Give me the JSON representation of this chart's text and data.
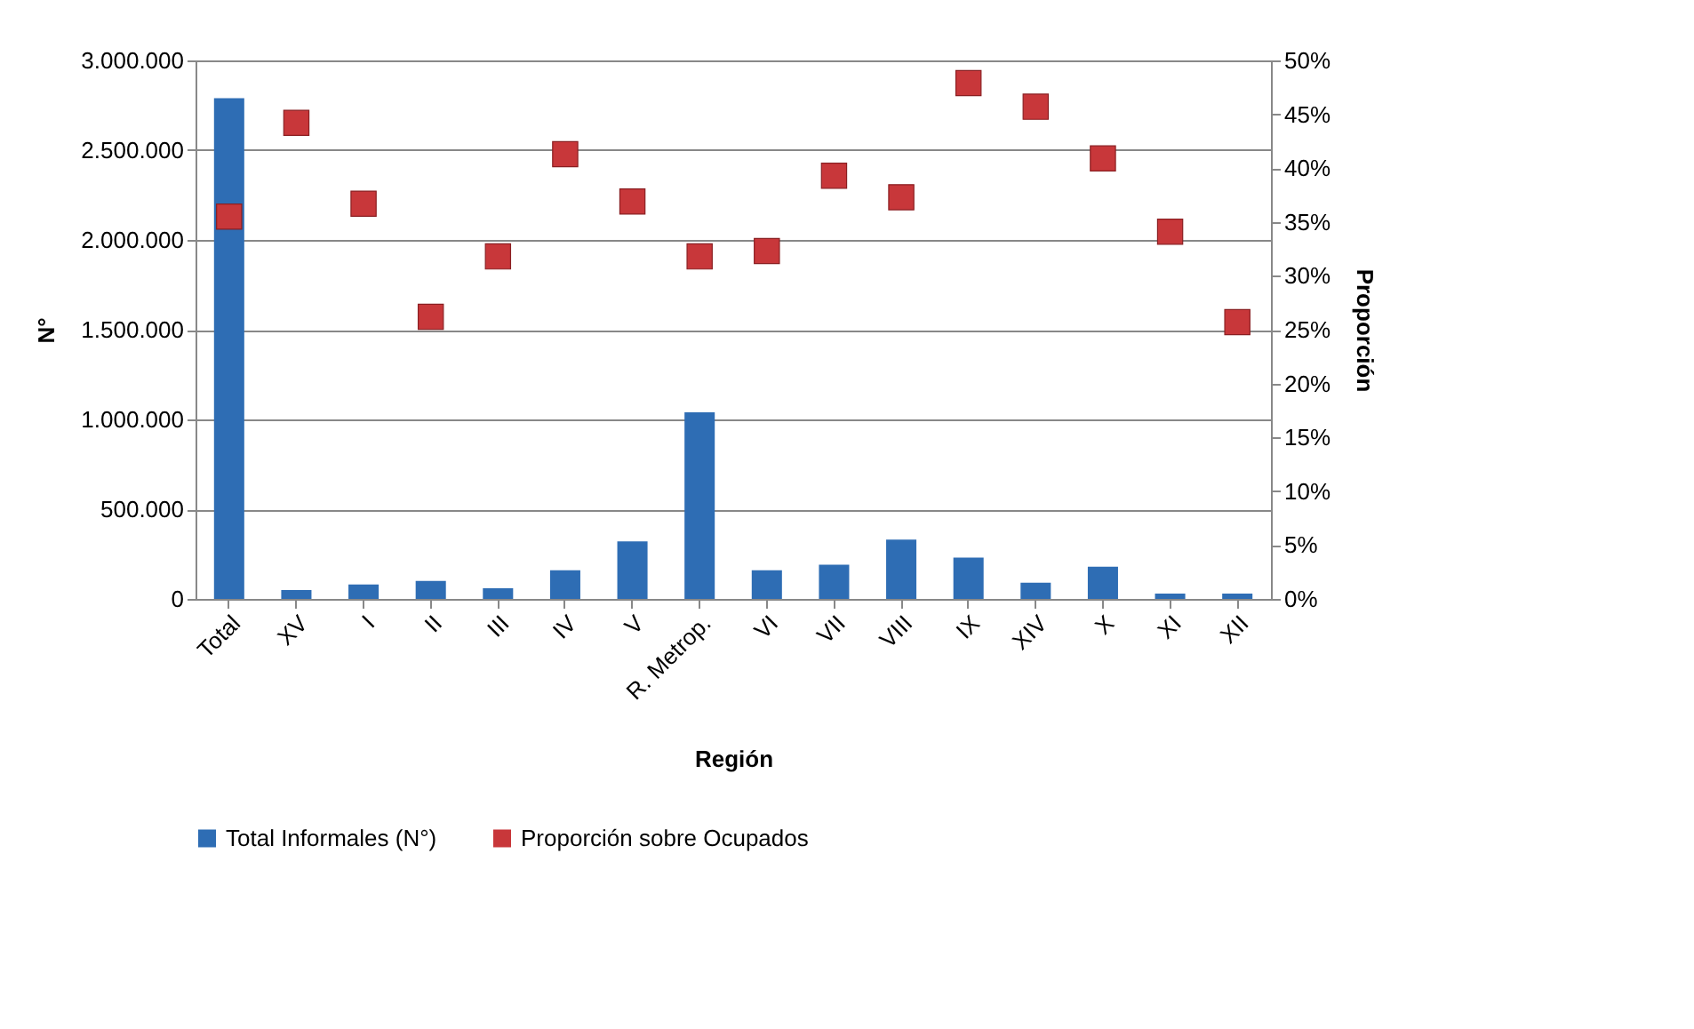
{
  "chart_data": {
    "type": "bar",
    "xlabel": "Región",
    "ylabel": "N°",
    "y2label": "Proporción",
    "categories": [
      "Total",
      "XV",
      "I",
      "II",
      "III",
      "IV",
      "V",
      "R. Metrop.",
      "VI",
      "VII",
      "VIII",
      "IX",
      "XIV",
      "X",
      "XI",
      "XII"
    ],
    "series": [
      {
        "name": "Total Informales (N°)",
        "color": "#2e6db4",
        "values": [
          2790000,
          50000,
          80000,
          100000,
          60000,
          160000,
          320000,
          1040000,
          160000,
          190000,
          330000,
          230000,
          90000,
          180000,
          30000,
          30000
        ]
      },
      {
        "name": "Proporción sobre Ocupados",
        "type": "scatter",
        "axis": "y2",
        "color": "#c8373a",
        "values": [
          35.5,
          44.2,
          36.7,
          26.2,
          31.8,
          41.3,
          36.9,
          31.8,
          32.3,
          39.3,
          37.3,
          47.9,
          45.7,
          40.9,
          34.1,
          25.7
        ]
      }
    ],
    "ylim": [
      0,
      3000000
    ],
    "yticks": [
      {
        "value": 0,
        "label": "0"
      },
      {
        "value": 500000,
        "label": "500.000"
      },
      {
        "value": 1000000,
        "label": "1.000.000"
      },
      {
        "value": 1500000,
        "label": "1.500.000"
      },
      {
        "value": 2000000,
        "label": "2.000.000"
      },
      {
        "value": 2500000,
        "label": "2.500.000"
      },
      {
        "value": 3000000,
        "label": "3.000.000"
      }
    ],
    "y2lim": [
      0,
      50
    ],
    "y2ticks": [
      {
        "value": 0,
        "label": "0%"
      },
      {
        "value": 5,
        "label": "5%"
      },
      {
        "value": 10,
        "label": "10%"
      },
      {
        "value": 15,
        "label": "15%"
      },
      {
        "value": 20,
        "label": "20%"
      },
      {
        "value": 25,
        "label": "25%"
      },
      {
        "value": 30,
        "label": "30%"
      },
      {
        "value": 35,
        "label": "35%"
      },
      {
        "value": 40,
        "label": "40%"
      },
      {
        "value": 45,
        "label": "45%"
      },
      {
        "value": 50,
        "label": "50%"
      }
    ],
    "grid": "y",
    "legend": "bottom",
    "marker": "square"
  }
}
